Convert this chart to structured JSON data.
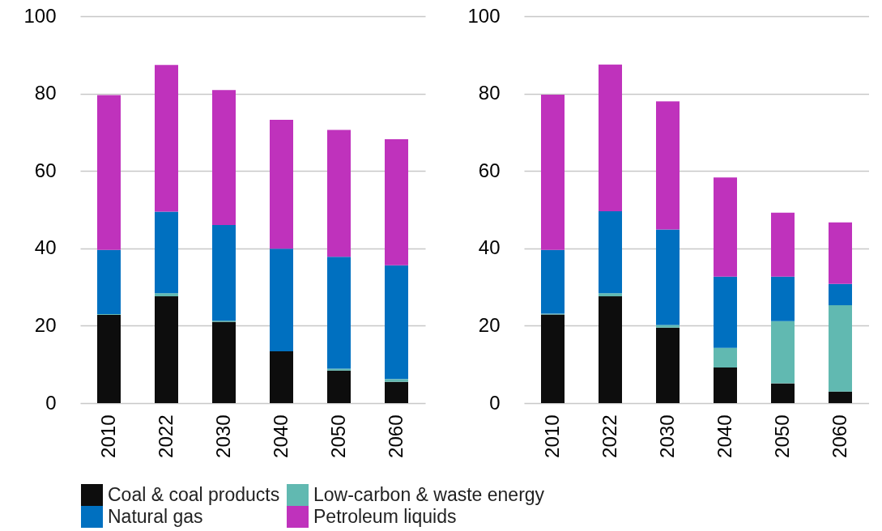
{
  "chart_data": [
    {
      "type": "bar",
      "stacked": true,
      "categories": [
        "2010",
        "2022",
        "2030",
        "2040",
        "2050",
        "2060"
      ],
      "series": [
        {
          "name": "Coal & coal products",
          "color": "#0d0d0d",
          "values": [
            22.8,
            27.6,
            21.0,
            13.4,
            8.4,
            5.5
          ]
        },
        {
          "name": "Low-carbon & waste energy",
          "color": "#61b9b1",
          "values": [
            0.2,
            0.8,
            0.3,
            0,
            0.5,
            0.7
          ]
        },
        {
          "name": "Natural gas",
          "color": "#0070c0",
          "values": [
            16.6,
            21.1,
            24.7,
            26.5,
            28.9,
            29.4
          ]
        },
        {
          "name": "Petroleum liquids",
          "color": "#bf32bc",
          "values": [
            40.0,
            37.9,
            34.9,
            33.3,
            32.8,
            32.6
          ]
        }
      ],
      "ylim": [
        0,
        100
      ],
      "yticks": [
        0,
        20,
        40,
        60,
        80,
        100
      ],
      "grid": "y",
      "legend": "bottom"
    },
    {
      "type": "bar",
      "stacked": true,
      "categories": [
        "2010",
        "2022",
        "2030",
        "2040",
        "2050",
        "2060"
      ],
      "series": [
        {
          "name": "Coal & coal products",
          "color": "#0d0d0d",
          "values": [
            22.9,
            27.6,
            19.5,
            9.2,
            5.1,
            3.0
          ]
        },
        {
          "name": "Low-carbon & waste energy",
          "color": "#61b9b1",
          "values": [
            0.2,
            0.8,
            0.7,
            5.1,
            16.1,
            22.3
          ]
        },
        {
          "name": "Natural gas",
          "color": "#0070c0",
          "values": [
            16.5,
            21.2,
            24.7,
            18.4,
            11.5,
            5.5
          ]
        },
        {
          "name": "Petroleum liquids",
          "color": "#bf32bc",
          "values": [
            40.1,
            37.9,
            33.1,
            25.6,
            16.5,
            15.9
          ]
        }
      ],
      "ylim": [
        0,
        100
      ],
      "yticks": [
        0,
        20,
        40,
        60,
        80,
        100
      ],
      "grid": "y"
    }
  ]
}
